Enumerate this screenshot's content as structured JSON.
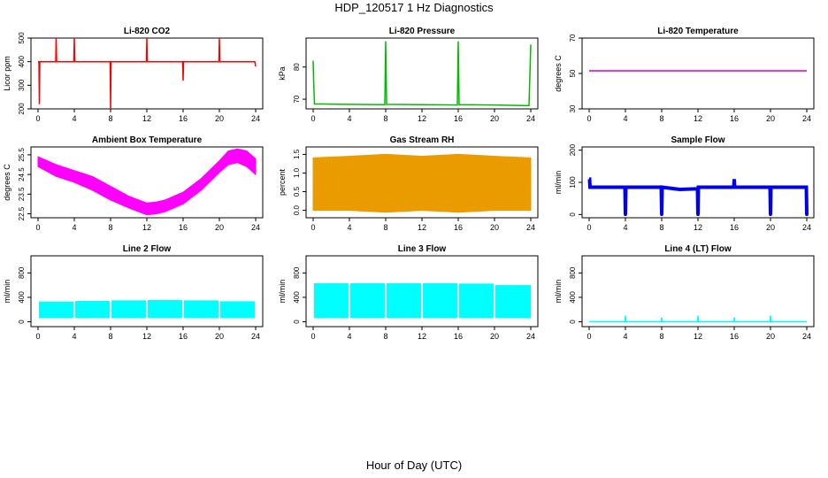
{
  "title": "HDP_120517  1 Hz Diagnostics",
  "xlabel": "Hour of Day (UTC)",
  "chart_data": [
    {
      "type": "line",
      "title": "Li-820 CO2",
      "ylabel": "Licor ppm",
      "color": "#ff0000",
      "xlim": [
        0,
        24
      ],
      "ylim": [
        200,
        500
      ],
      "xticks": [
        0,
        4,
        8,
        12,
        16,
        20,
        24
      ],
      "yticks": [
        200,
        300,
        400,
        500
      ],
      "ytick_labels": [
        "200",
        "300",
        "400",
        "500"
      ],
      "style": "line",
      "series": [
        {
          "x": [
            0,
            0.1,
            0.15,
            0.2,
            0.5,
            1.0,
            1.5,
            1.95,
            2.0,
            2.05,
            3.0,
            3.95,
            4.0,
            4.05,
            5.0,
            6.0,
            6.5,
            7.95,
            8.0,
            8.05,
            9.0,
            10.0,
            11.0,
            11.95,
            12.0,
            12.05,
            13.0,
            14.0,
            15.0,
            15.95,
            16.0,
            16.05,
            17.0,
            18.0,
            19.0,
            19.95,
            20.0,
            20.05,
            21.0,
            22.0,
            23.0,
            23.9,
            24.0
          ],
          "y": [
            400,
            400,
            220,
            400,
            400,
            400,
            400,
            400,
            500,
            400,
            400,
            400,
            500,
            400,
            400,
            400,
            400,
            400,
            200,
            400,
            400,
            400,
            400,
            400,
            500,
            400,
            400,
            400,
            400,
            400,
            320,
            400,
            400,
            400,
            400,
            400,
            500,
            400,
            400,
            400,
            400,
            400,
            380
          ]
        }
      ]
    },
    {
      "type": "line",
      "title": "Li-820 Pressure",
      "ylabel": "kPa",
      "color": "#00bb00",
      "xlim": [
        0,
        24
      ],
      "ylim": [
        67,
        89
      ],
      "xticks": [
        0,
        4,
        8,
        12,
        16,
        20,
        24
      ],
      "yticks": [
        70,
        80
      ],
      "ytick_labels": [
        "70",
        "80"
      ],
      "style": "line",
      "series": [
        {
          "x": [
            0,
            0.05,
            0.15,
            1,
            4,
            7.9,
            8.0,
            8.1,
            12,
            15.9,
            16.0,
            16.1,
            20,
            23.8,
            24.0
          ],
          "y": [
            82,
            76,
            68.5,
            68.5,
            68.4,
            68.3,
            88,
            68.4,
            68.3,
            68.2,
            88,
            68.3,
            68.2,
            68.0,
            87
          ]
        }
      ]
    },
    {
      "type": "line",
      "title": "Li-820 Temperature",
      "ylabel": "degrees C",
      "color": "#cc00cc",
      "xlim": [
        0,
        24
      ],
      "ylim": [
        30,
        70
      ],
      "xticks": [
        0,
        4,
        8,
        12,
        16,
        20,
        24
      ],
      "yticks": [
        30,
        50,
        70
      ],
      "ytick_labels": [
        "30",
        "50",
        "70"
      ],
      "style": "line",
      "series": [
        {
          "x": [
            0,
            24
          ],
          "y": [
            51.5,
            51.5
          ]
        }
      ]
    },
    {
      "type": "area",
      "title": "Ambient Box Temperature",
      "ylabel": "degrees C",
      "color": "#ff00ff",
      "xlim": [
        0,
        24
      ],
      "ylim": [
        22.3,
        25.9
      ],
      "xticks": [
        0,
        4,
        8,
        12,
        16,
        20,
        24
      ],
      "yticks": [
        22.5,
        23.5,
        24.5,
        25.5
      ],
      "ytick_labels": [
        "22.5",
        "23.5",
        "24.5",
        "25.5"
      ],
      "style": "band",
      "series": [
        {
          "x": [
            0,
            2,
            4,
            6,
            8,
            10,
            12,
            13,
            14,
            16,
            18,
            20,
            21,
            22,
            23,
            24
          ],
          "upper": [
            25.4,
            25.0,
            24.7,
            24.4,
            23.9,
            23.4,
            23.05,
            23.1,
            23.2,
            23.6,
            24.3,
            25.2,
            25.7,
            25.8,
            25.7,
            25.3
          ],
          "lower": [
            24.9,
            24.4,
            24.1,
            23.7,
            23.2,
            22.8,
            22.45,
            22.5,
            22.6,
            23.0,
            23.7,
            24.6,
            25.0,
            25.1,
            24.9,
            24.5
          ]
        }
      ]
    },
    {
      "type": "area",
      "title": "Gas Stream RH",
      "ylabel": "percent",
      "color": "#ee9900",
      "xlim": [
        0,
        24
      ],
      "ylim": [
        -0.2,
        1.7
      ],
      "xticks": [
        0,
        4,
        8,
        12,
        16,
        20,
        24
      ],
      "yticks": [
        0.0,
        0.5,
        1.0,
        1.5
      ],
      "ytick_labels": [
        "0.0",
        "0.5",
        "1.0",
        "1.5"
      ],
      "style": "band",
      "series": [
        {
          "x": [
            0,
            4,
            8,
            12,
            16,
            20,
            24
          ],
          "upper": [
            1.4,
            1.45,
            1.5,
            1.45,
            1.5,
            1.45,
            1.4
          ],
          "lower": [
            0.0,
            0.0,
            -0.05,
            0.0,
            -0.05,
            0.0,
            0.0
          ]
        }
      ]
    },
    {
      "type": "line",
      "title": "Sample Flow",
      "ylabel": "ml/min",
      "color": "#0000ee",
      "xlim": [
        0,
        24
      ],
      "ylim": [
        -10,
        210
      ],
      "xticks": [
        0,
        4,
        8,
        12,
        16,
        20,
        24
      ],
      "yticks": [
        0,
        100,
        200
      ],
      "ytick_labels": [
        "0",
        "100",
        "200"
      ],
      "style": "thick-line",
      "series": [
        {
          "x": [
            0,
            0.05,
            0.1,
            2,
            3.95,
            4.0,
            4.05,
            6,
            7.95,
            8.0,
            8.05,
            10,
            11.95,
            12.0,
            12.05,
            14,
            15.95,
            16.0,
            16.05,
            18,
            19.95,
            20.0,
            20.05,
            22,
            23.95,
            24.0
          ],
          "y": [
            110,
            110,
            85,
            85,
            85,
            0,
            85,
            85,
            85,
            0,
            85,
            78,
            80,
            0,
            85,
            85,
            85,
            110,
            85,
            85,
            85,
            0,
            85,
            85,
            85,
            0
          ]
        }
      ]
    },
    {
      "type": "area",
      "title": "Line 2 Flow",
      "ylabel": "ml/min",
      "color": "#00ffff",
      "xlim": [
        0,
        24
      ],
      "ylim": [
        -80,
        1080
      ],
      "xticks": [
        0,
        4,
        8,
        12,
        16,
        20,
        24
      ],
      "yticks": [
        0,
        400,
        800
      ],
      "ytick_labels": [
        "0",
        "400",
        "800"
      ],
      "style": "bars",
      "series": [
        {
          "segments": [
            [
              0.1,
              3.9
            ],
            [
              4.1,
              7.9
            ],
            [
              8.1,
              11.9
            ],
            [
              12.1,
              15.9
            ],
            [
              16.1,
              19.9
            ],
            [
              20.1,
              23.9
            ]
          ],
          "upper": [
            330,
            340,
            350,
            355,
            350,
            335
          ],
          "lower": 60
        }
      ]
    },
    {
      "type": "area",
      "title": "Line 3 Flow",
      "ylabel": "ml/min",
      "color": "#00ffff",
      "xlim": [
        0,
        24
      ],
      "ylim": [
        -80,
        1080
      ],
      "xticks": [
        0,
        4,
        8,
        12,
        16,
        20,
        24
      ],
      "yticks": [
        0,
        400,
        800
      ],
      "ytick_labels": [
        "0",
        "400",
        "800"
      ],
      "style": "bars",
      "series": [
        {
          "segments": [
            [
              0.1,
              3.9
            ],
            [
              4.1,
              7.9
            ],
            [
              8.1,
              11.9
            ],
            [
              12.1,
              15.9
            ],
            [
              16.1,
              19.9
            ],
            [
              20.1,
              24.0
            ]
          ],
          "upper": [
            630,
            630,
            630,
            630,
            625,
            600
          ],
          "lower": 60
        }
      ]
    },
    {
      "type": "line",
      "title": "Line 4 (LT) Flow",
      "ylabel": "ml/min",
      "color": "#00ffff",
      "xlim": [
        0,
        24
      ],
      "ylim": [
        -80,
        1080
      ],
      "xticks": [
        0,
        4,
        8,
        12,
        16,
        20,
        24
      ],
      "yticks": [
        0,
        400,
        800
      ],
      "ytick_labels": [
        "0",
        "400",
        "800"
      ],
      "style": "line",
      "series": [
        {
          "x": [
            0,
            3.95,
            4.0,
            4.05,
            7.95,
            8.0,
            8.05,
            11.95,
            12.0,
            12.05,
            15.95,
            16.0,
            16.05,
            19.95,
            20.0,
            20.05,
            24
          ],
          "y": [
            0,
            0,
            100,
            0,
            0,
            70,
            0,
            0,
            100,
            0,
            0,
            70,
            0,
            0,
            100,
            0,
            0
          ]
        }
      ]
    }
  ]
}
